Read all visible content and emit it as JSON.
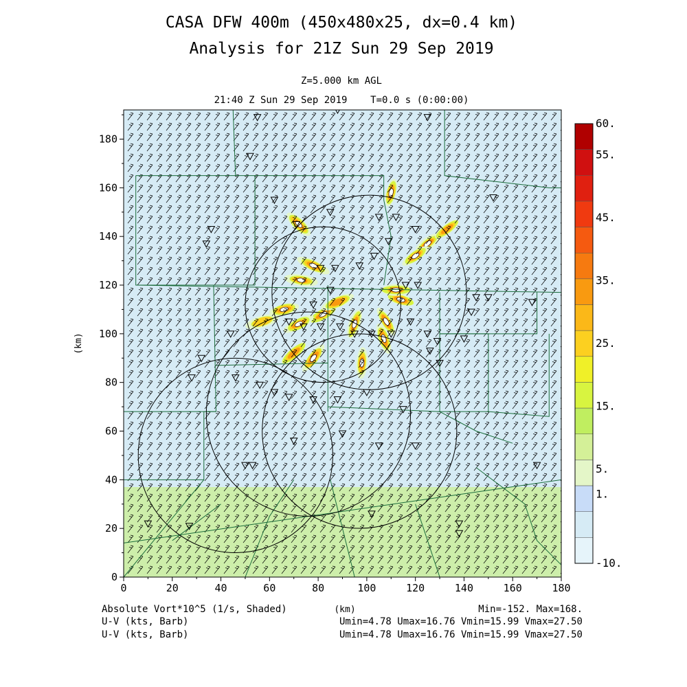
{
  "title": {
    "line1": "CASA DFW 400m (450x480x25, dx=0.4 km)",
    "line2": "Analysis for 21Z Sun 29 Sep 2019"
  },
  "header": {
    "level": "Z=5.000 km AGL",
    "time": "21:40 Z Sun 29 Sep 2019    T=0.0 s (0:00:00)"
  },
  "footer": {
    "field": "Absolute Vort*10^5 (1/s, Shaded)",
    "xunit": "(km)",
    "minmax": "Min=-152. Max=168.",
    "wind1_label": "U-V (kts, Barb)",
    "wind1_stats": "Umin=4.78 Umax=16.76 Vmin=15.99 Vmax=27.50",
    "wind2_label": "U-V (kts, Barb)",
    "wind2_stats": "Umin=4.78 Umax=16.76 Vmin=15.99 Vmax=27.50"
  },
  "colors": {
    "background_shade": "#d6ebf5",
    "low_shade": "#cdeeaa",
    "county_lines": "#1a6b3a",
    "range_rings": "#000000"
  },
  "chart_data": {
    "type": "heatmap",
    "xlabel": "(km)",
    "ylabel": "(km)",
    "xlim": [
      0,
      180
    ],
    "ylim": [
      0,
      192
    ],
    "xticks": [
      0,
      20,
      40,
      60,
      80,
      100,
      120,
      140,
      160,
      180
    ],
    "yticks": [
      0,
      20,
      40,
      60,
      80,
      100,
      120,
      140,
      160,
      180
    ],
    "overlay": "wind barbs",
    "colorbar": {
      "labels": [
        "60.",
        "55.",
        "45.",
        "35.",
        "25.",
        "15.",
        "5.",
        "1.",
        "-10."
      ],
      "label_values": [
        60,
        55,
        45,
        35,
        25,
        15,
        5,
        1,
        -10
      ],
      "colors": [
        "#b00000",
        "#d01010",
        "#e02010",
        "#f03a10",
        "#f55a10",
        "#f67a10",
        "#f99a10",
        "#fbb818",
        "#fcd020",
        "#f0f028",
        "#d8f440",
        "#c0ee60",
        "#d4f098",
        "#e4f6c8",
        "#c8dcf8",
        "#d6ebf5",
        "#e6f4fa"
      ]
    },
    "fields": {
      "background_value": 0,
      "low_band_value": 5,
      "low_band_y": [
        0,
        37
      ]
    },
    "vorticity_features": [
      {
        "x": 98,
        "y": 88,
        "value": 60
      },
      {
        "x": 95,
        "y": 104,
        "value": 45
      },
      {
        "x": 82,
        "y": 108,
        "value": 60
      },
      {
        "x": 72,
        "y": 104,
        "value": 45
      },
      {
        "x": 66,
        "y": 110,
        "value": 60
      },
      {
        "x": 73,
        "y": 122,
        "value": 60
      },
      {
        "x": 78,
        "y": 128,
        "value": 45
      },
      {
        "x": 78,
        "y": 90,
        "value": 60
      },
      {
        "x": 108,
        "y": 105,
        "value": 60
      },
      {
        "x": 114,
        "y": 114,
        "value": 60
      },
      {
        "x": 112,
        "y": 118,
        "value": 45
      },
      {
        "x": 125,
        "y": 137,
        "value": 60
      },
      {
        "x": 120,
        "y": 132,
        "value": 45
      },
      {
        "x": 133,
        "y": 143,
        "value": 35
      },
      {
        "x": 72,
        "y": 145,
        "value": 60
      },
      {
        "x": 110,
        "y": 158,
        "value": 45
      },
      {
        "x": 107,
        "y": 98,
        "value": 45
      },
      {
        "x": 88,
        "y": 113,
        "value": 35
      },
      {
        "x": 70,
        "y": 92,
        "value": 35
      },
      {
        "x": 57,
        "y": 105,
        "value": 25
      }
    ],
    "range_rings": [
      {
        "cx": 101,
        "cy": 117,
        "r": 40
      },
      {
        "cx": 82,
        "cy": 112,
        "r": 32
      },
      {
        "cx": 97,
        "cy": 60,
        "r": 40
      },
      {
        "cx": 46,
        "cy": 50,
        "r": 40
      },
      {
        "cx": 76,
        "cy": 67,
        "r": 42
      }
    ],
    "stations": [
      {
        "x": 55,
        "y": 189
      },
      {
        "x": 88,
        "y": 192
      },
      {
        "x": 125,
        "y": 189
      },
      {
        "x": 52,
        "y": 173
      },
      {
        "x": 62,
        "y": 155
      },
      {
        "x": 36,
        "y": 143
      },
      {
        "x": 34,
        "y": 137
      },
      {
        "x": 71,
        "y": 145
      },
      {
        "x": 85,
        "y": 150
      },
      {
        "x": 105,
        "y": 148
      },
      {
        "x": 112,
        "y": 148
      },
      {
        "x": 120,
        "y": 143
      },
      {
        "x": 109,
        "y": 138
      },
      {
        "x": 103,
        "y": 132
      },
      {
        "x": 97,
        "y": 128
      },
      {
        "x": 87,
        "y": 127
      },
      {
        "x": 81,
        "y": 127
      },
      {
        "x": 116,
        "y": 120
      },
      {
        "x": 121,
        "y": 120
      },
      {
        "x": 85,
        "y": 118
      },
      {
        "x": 78,
        "y": 112
      },
      {
        "x": 68,
        "y": 105
      },
      {
        "x": 74,
        "y": 103
      },
      {
        "x": 81,
        "y": 103
      },
      {
        "x": 89,
        "y": 103
      },
      {
        "x": 95,
        "y": 100
      },
      {
        "x": 102,
        "y": 100
      },
      {
        "x": 110,
        "y": 100
      },
      {
        "x": 118,
        "y": 105
      },
      {
        "x": 125,
        "y": 100
      },
      {
        "x": 129,
        "y": 97
      },
      {
        "x": 126,
        "y": 93
      },
      {
        "x": 140,
        "y": 98
      },
      {
        "x": 130,
        "y": 88
      },
      {
        "x": 44,
        "y": 100
      },
      {
        "x": 32,
        "y": 90
      },
      {
        "x": 28,
        "y": 82
      },
      {
        "x": 46,
        "y": 82
      },
      {
        "x": 56,
        "y": 79
      },
      {
        "x": 62,
        "y": 76
      },
      {
        "x": 68,
        "y": 74
      },
      {
        "x": 78,
        "y": 73
      },
      {
        "x": 88,
        "y": 73
      },
      {
        "x": 100,
        "y": 76
      },
      {
        "x": 115,
        "y": 69
      },
      {
        "x": 90,
        "y": 59
      },
      {
        "x": 70,
        "y": 56
      },
      {
        "x": 105,
        "y": 54
      },
      {
        "x": 120,
        "y": 54
      },
      {
        "x": 53,
        "y": 46
      },
      {
        "x": 50,
        "y": 46
      },
      {
        "x": 170,
        "y": 46
      },
      {
        "x": 102,
        "y": 26
      },
      {
        "x": 138,
        "y": 22
      },
      {
        "x": 138,
        "y": 18
      },
      {
        "x": 10,
        "y": 22
      },
      {
        "x": 27,
        "y": 21
      },
      {
        "x": 152,
        "y": 156
      },
      {
        "x": 150,
        "y": 115
      },
      {
        "x": 168,
        "y": 113
      },
      {
        "x": 143,
        "y": 109
      },
      {
        "x": 145,
        "y": 115
      }
    ],
    "grid": false
  }
}
